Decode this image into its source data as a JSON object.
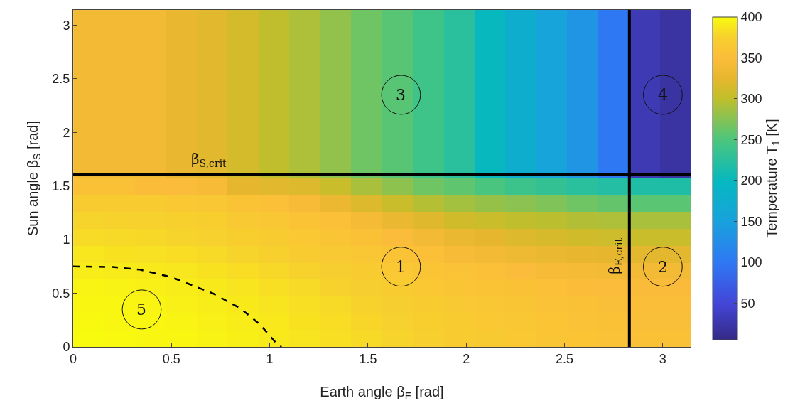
{
  "chart_data": {
    "type": "heatmap",
    "xlabel": "Earth angle β$_{E}$ [rad]",
    "ylabel": "Sun angle β$_{S}$ [rad]",
    "clabel": "Temperature T$_{1}$ [K]",
    "x": [
      0.079,
      0.236,
      0.393,
      0.55,
      0.707,
      0.864,
      1.021,
      1.178,
      1.335,
      1.492,
      1.649,
      1.806,
      1.963,
      2.121,
      2.278,
      2.435,
      2.592,
      2.749,
      2.906,
      3.063
    ],
    "y": [
      3.063,
      2.906,
      2.749,
      2.592,
      2.435,
      2.278,
      2.121,
      1.963,
      1.806,
      1.649,
      1.492,
      1.335,
      1.178,
      1.021,
      0.864,
      0.707,
      0.55,
      0.393,
      0.236,
      0.079
    ],
    "cells": [
      [
        340,
        340,
        340,
        328,
        322,
        312,
        300,
        292,
        280,
        265,
        255,
        240,
        225,
        200,
        175,
        155,
        135,
        100,
        30,
        20
      ],
      [
        340,
        340,
        340,
        328,
        322,
        312,
        300,
        292,
        280,
        265,
        255,
        240,
        225,
        200,
        175,
        155,
        135,
        100,
        30,
        20
      ],
      [
        340,
        340,
        340,
        328,
        322,
        312,
        300,
        292,
        280,
        265,
        255,
        240,
        225,
        200,
        175,
        155,
        135,
        100,
        30,
        20
      ],
      [
        340,
        340,
        340,
        328,
        322,
        312,
        300,
        292,
        280,
        265,
        255,
        240,
        225,
        200,
        175,
        155,
        135,
        100,
        30,
        20
      ],
      [
        340,
        340,
        340,
        328,
        322,
        312,
        300,
        292,
        280,
        265,
        255,
        240,
        225,
        200,
        175,
        155,
        135,
        100,
        30,
        20
      ],
      [
        340,
        340,
        340,
        328,
        322,
        312,
        300,
        292,
        280,
        265,
        255,
        240,
        225,
        200,
        175,
        155,
        135,
        100,
        30,
        20
      ],
      [
        340,
        340,
        340,
        328,
        322,
        312,
        300,
        292,
        280,
        265,
        255,
        240,
        225,
        200,
        175,
        155,
        135,
        100,
        30,
        20
      ],
      [
        340,
        340,
        340,
        328,
        322,
        312,
        300,
        292,
        280,
        265,
        255,
        240,
        225,
        200,
        175,
        155,
        135,
        100,
        30,
        20
      ],
      [
        340,
        340,
        340,
        328,
        322,
        312,
        300,
        292,
        280,
        265,
        255,
        240,
        225,
        200,
        175,
        155,
        135,
        100,
        30,
        20
      ],
      [
        340,
        340,
        340,
        328,
        322,
        312,
        300,
        292,
        280,
        265,
        255,
        240,
        225,
        200,
        175,
        155,
        135,
        100,
        30,
        20
      ],
      [
        355,
        355,
        350,
        348,
        345,
        325,
        322,
        318,
        305,
        290,
        278,
        265,
        258,
        248,
        238,
        232,
        225,
        220,
        218,
        218
      ],
      [
        370,
        370,
        368,
        365,
        362,
        358,
        352,
        345,
        332,
        318,
        305,
        295,
        288,
        282,
        277,
        272,
        265,
        260,
        256,
        256
      ],
      [
        378,
        377,
        376,
        375,
        372,
        366,
        362,
        358,
        352,
        342,
        330,
        320,
        310,
        305,
        300,
        298,
        294,
        292,
        290,
        290
      ],
      [
        382,
        381,
        380,
        378,
        376,
        372,
        368,
        364,
        360,
        355,
        348,
        340,
        330,
        325,
        318,
        314,
        310,
        308,
        306,
        306
      ],
      [
        388,
        386,
        385,
        383,
        381,
        378,
        375,
        370,
        366,
        362,
        358,
        352,
        345,
        340,
        334,
        330,
        327,
        325,
        323,
        323
      ],
      [
        392,
        391,
        390,
        388,
        386,
        383,
        380,
        377,
        373,
        368,
        364,
        360,
        356,
        352,
        348,
        345,
        342,
        340,
        338,
        338
      ],
      [
        396,
        395,
        394,
        392,
        390,
        387,
        384,
        381,
        377,
        373,
        369,
        365,
        361,
        358,
        355,
        352,
        350,
        348,
        346,
        346
      ],
      [
        398,
        397,
        396,
        394,
        392,
        390,
        387,
        384,
        381,
        377,
        373,
        369,
        366,
        363,
        360,
        357,
        355,
        353,
        351,
        351
      ],
      [
        399,
        398,
        397,
        396,
        394,
        392,
        389,
        386,
        383,
        379,
        376,
        372,
        368,
        365,
        362,
        359,
        357,
        355,
        353,
        353
      ],
      [
        400,
        399,
        398,
        397,
        395,
        393,
        390,
        387,
        384,
        381,
        378,
        374,
        370,
        367,
        364,
        361,
        359,
        357,
        355,
        355
      ]
    ],
    "clim": [
      5,
      400
    ],
    "cticks": [
      50,
      100,
      150,
      200,
      250,
      300,
      350,
      400
    ],
    "xlim": [
      0,
      3.1416
    ],
    "ylim": [
      0,
      3.1416
    ],
    "xticks": [
      0,
      0.5,
      1,
      1.5,
      2,
      2.5,
      3
    ],
    "yticks": [
      0,
      0.5,
      1,
      1.5,
      2,
      2.5,
      3
    ],
    "series": [
      {
        "type": "line",
        "color": "#000000",
        "line_style": "dashed",
        "x": [
          0,
          0.2,
          0.34,
          0.5,
          0.71,
          0.85,
          0.95,
          1.04,
          1.06
        ],
        "values": [
          0.75,
          0.745,
          0.72,
          0.65,
          0.5,
          0.36,
          0.21,
          0.02,
          0
        ]
      }
    ],
    "ref_lines": [
      {
        "axis": "y",
        "value": 1.61,
        "label": "β$_{S,crit}$",
        "color": "#000000"
      },
      {
        "axis": "x",
        "value": 2.83,
        "label": "β$_{E,crit}$",
        "color": "#000000"
      }
    ],
    "annotations": [
      "1",
      "2",
      "3",
      "4",
      "5"
    ]
  }
}
